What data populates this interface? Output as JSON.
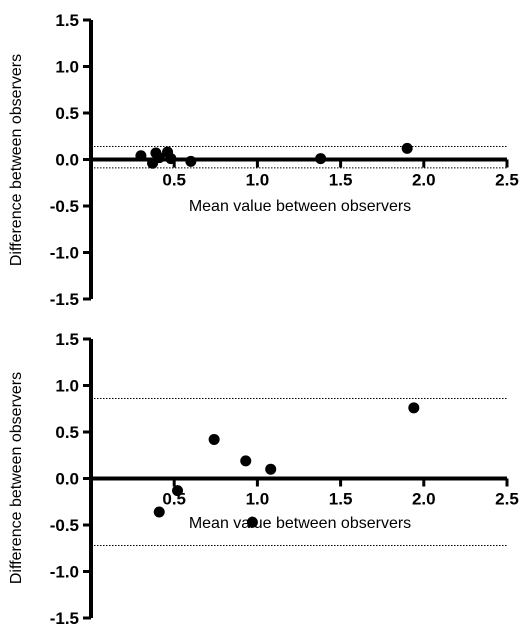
{
  "chart_data": [
    {
      "type": "scatter",
      "xlabel": "Mean value between observers",
      "ylabel": "Difference between observers",
      "xlim": [
        0,
        2.5
      ],
      "ylim": [
        -1.5,
        1.5
      ],
      "x_ticks": [
        "0.5",
        "1.0",
        "1.5",
        "2.0",
        "2.5"
      ],
      "y_ticks": [
        "1.5",
        "1.0",
        "0.5",
        "0.0",
        "-0.5",
        "-1.0",
        "-1.5"
      ],
      "limits_of_agreement": [
        0.14,
        -0.09
      ],
      "series": [
        {
          "points": [
            {
              "x": 0.3,
              "y": 0.04
            },
            {
              "x": 0.37,
              "y": -0.04
            },
            {
              "x": 0.39,
              "y": 0.07
            },
            {
              "x": 0.41,
              "y": 0.02
            },
            {
              "x": 0.46,
              "y": 0.08
            },
            {
              "x": 0.48,
              "y": 0.01
            },
            {
              "x": 0.6,
              "y": -0.02
            },
            {
              "x": 1.38,
              "y": 0.01
            },
            {
              "x": 1.9,
              "y": 0.12
            }
          ]
        }
      ]
    },
    {
      "type": "scatter",
      "xlabel": "Mean value between observers",
      "ylabel": "Difference between observers",
      "xlim": [
        0,
        2.5
      ],
      "ylim": [
        -1.5,
        1.5
      ],
      "x_ticks": [
        "0.5",
        "1.0",
        "1.5",
        "2.0",
        "2.5"
      ],
      "y_ticks": [
        "1.5",
        "1.0",
        "0.5",
        "0.0",
        "-0.5",
        "-1.0",
        "-1.5"
      ],
      "limits_of_agreement": [
        0.86,
        -0.72
      ],
      "series": [
        {
          "points": [
            {
              "x": 0.41,
              "y": -0.36
            },
            {
              "x": 0.52,
              "y": -0.13
            },
            {
              "x": 0.74,
              "y": 0.42
            },
            {
              "x": 0.93,
              "y": 0.19
            },
            {
              "x": 0.97,
              "y": -0.47
            },
            {
              "x": 1.08,
              "y": 0.1
            },
            {
              "x": 1.94,
              "y": 0.76
            }
          ]
        }
      ]
    }
  ]
}
